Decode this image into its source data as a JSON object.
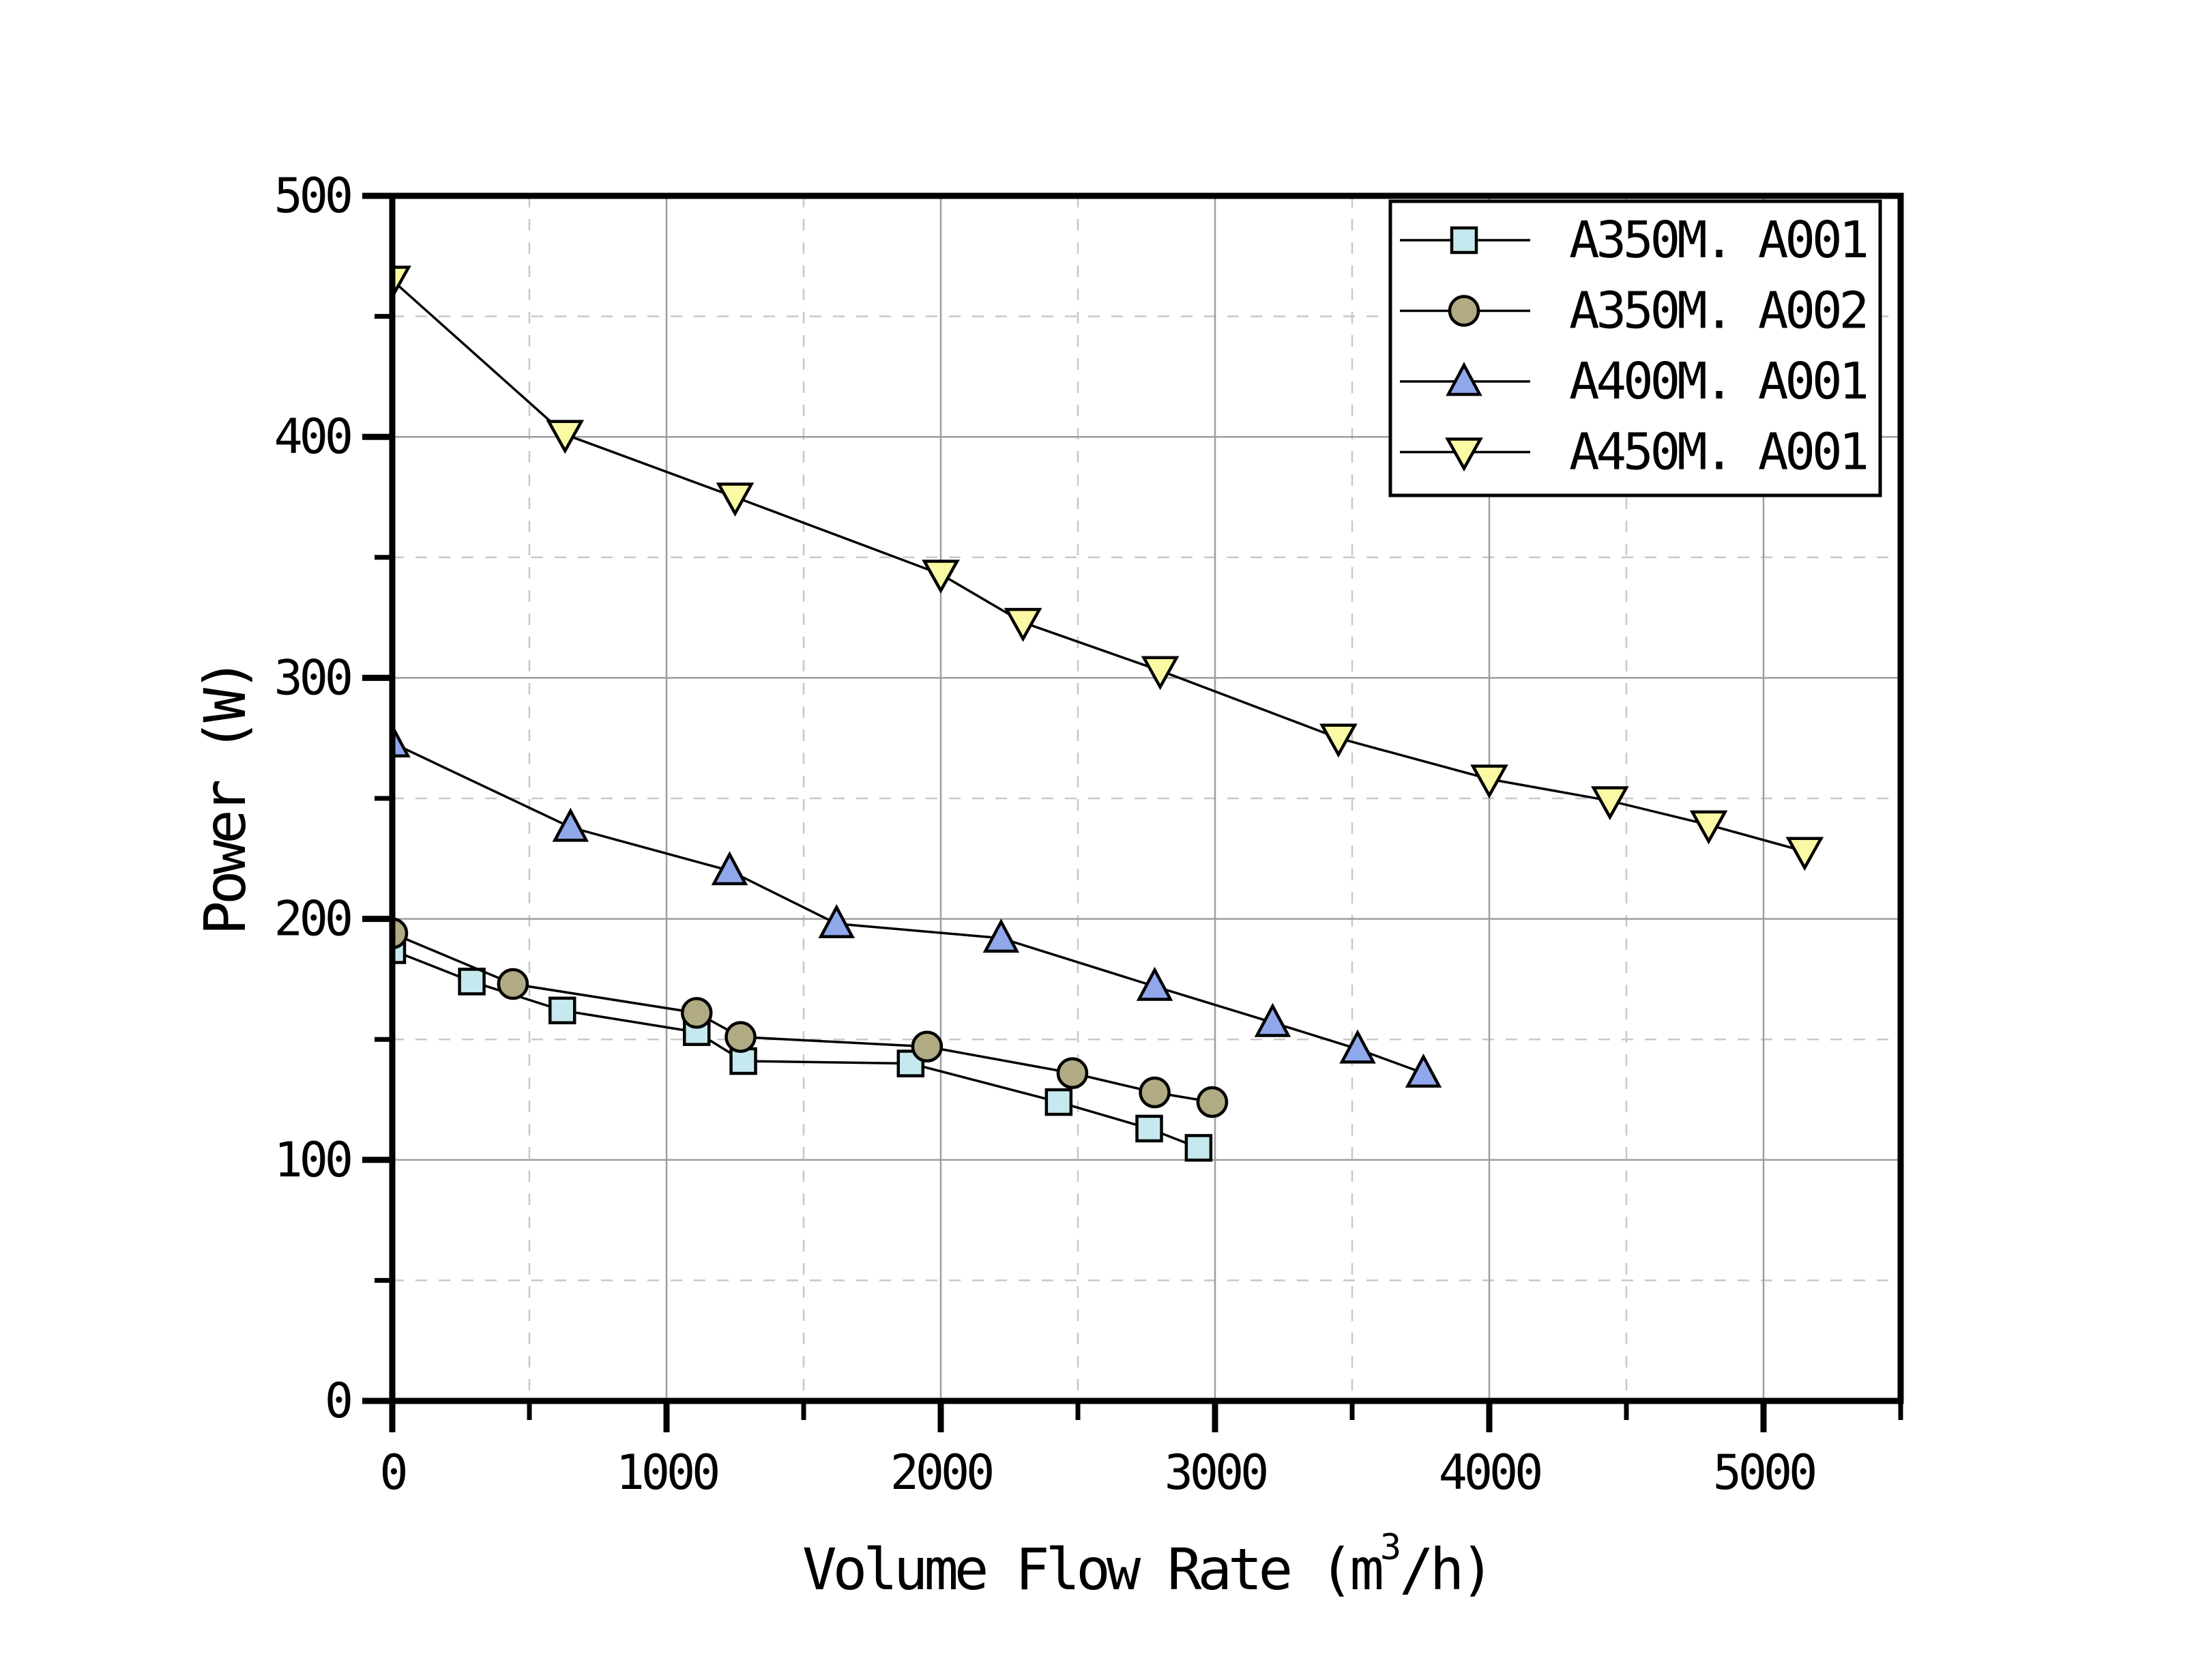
{
  "app": {
    "background": "#ffffff"
  },
  "chart_data": {
    "type": "line",
    "title": "",
    "xlabel": "Volume Flow Rate (m3/h)",
    "xlabel_parts": {
      "pre": "Volume Flow Rate (m",
      "sup": "3",
      "post": "/h)"
    },
    "ylabel": "Power (W)",
    "xlim": [
      0,
      5500
    ],
    "ylim": [
      0,
      500
    ],
    "x_major_ticks": [
      0,
      1000,
      2000,
      3000,
      4000,
      5000
    ],
    "x_minor_ticks": [
      500,
      1500,
      2500,
      3500,
      4500,
      5500
    ],
    "y_major_ticks": [
      0,
      100,
      200,
      300,
      400,
      500
    ],
    "y_minor_ticks": [
      50,
      150,
      250,
      350,
      450
    ],
    "grid": {
      "grid_on": true,
      "major_color": "#9e9e9e",
      "minor_color": "#c8c8c8",
      "minor_style": "dashed"
    },
    "legend_position": "top-right",
    "line_color": "#000000",
    "marker_edge_color": "#000000",
    "series": [
      {
        "name": "A350M. A001",
        "marker": "square",
        "fill": "#c6e9ef",
        "x": [
          0,
          290,
          620,
          1110,
          1280,
          1890,
          2430,
          2760,
          2940
        ],
        "y": [
          187,
          174,
          162,
          153,
          141,
          140,
          124,
          113,
          105
        ]
      },
      {
        "name": "A350M. A002",
        "marker": "circle",
        "fill": "#b0ab82",
        "x": [
          0,
          440,
          1110,
          1270,
          1950,
          2480,
          2780,
          2990
        ],
        "y": [
          194,
          173,
          161,
          151,
          147,
          136,
          128,
          124
        ]
      },
      {
        "name": "A400M. A001",
        "marker": "triangle-up",
        "fill": "#90a8eb",
        "x": [
          0,
          650,
          1230,
          1620,
          2220,
          2780,
          3210,
          3520,
          3760
        ],
        "y": [
          273,
          238,
          220,
          198,
          192,
          172,
          157,
          146,
          136
        ]
      },
      {
        "name": "A450M. A001",
        "marker": "triangle-down",
        "fill": "#fbf9a3",
        "x": [
          0,
          630,
          1250,
          2000,
          2300,
          2800,
          3450,
          4000,
          4440,
          4800,
          5150
        ],
        "y": [
          465,
          401,
          375,
          343,
          323,
          303,
          275,
          258,
          249,
          239,
          228
        ]
      }
    ]
  }
}
